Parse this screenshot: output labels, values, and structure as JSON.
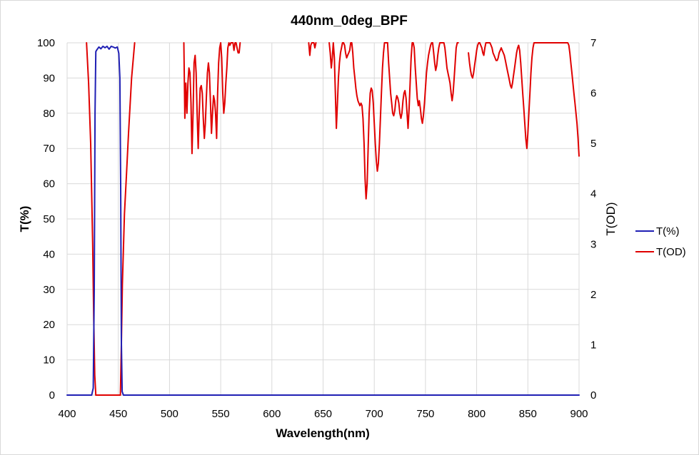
{
  "chart_data": {
    "type": "line",
    "title": "440nm_0deg_BPF",
    "xlabel": "Wavelength(nm)",
    "ylabel": "T(%)",
    "y2label": "T(OD)",
    "xlim": [
      400,
      900
    ],
    "ylim": [
      0,
      100
    ],
    "y2lim": [
      0,
      7
    ],
    "xticks": [
      "400",
      "450",
      "500",
      "550",
      "600",
      "650",
      "700",
      "750",
      "800",
      "850",
      "900"
    ],
    "yticks": [
      "0",
      "10",
      "20",
      "30",
      "40",
      "50",
      "60",
      "70",
      "80",
      "90",
      "100"
    ],
    "y2ticks": [
      "0",
      "1",
      "2",
      "3",
      "4",
      "5",
      "6",
      "7"
    ],
    "grid": "vertical-and-horizontal",
    "legend_position": "right",
    "series": [
      {
        "name": "T(%)",
        "axis": "left",
        "color": "#1f1fb4",
        "x": [
          400,
          424,
          425.5,
          426.5,
          427.3,
          428,
          429,
          431,
          433,
          435,
          437,
          439,
          441,
          443,
          445,
          447,
          449,
          450.5,
          451.5,
          452.3,
          453,
          453.8,
          455,
          900
        ],
        "y": [
          0,
          0,
          2,
          30,
          80,
          97.5,
          98,
          98.8,
          98.3,
          99,
          98.6,
          99,
          98.2,
          99,
          98.8,
          98.5,
          98.8,
          97,
          90,
          60,
          15,
          1,
          0,
          0
        ]
      },
      {
        "name": "T(OD)",
        "axis": "right",
        "color": "#e00000",
        "segments": [
          {
            "x": [
              419,
              421,
              423,
              425,
              426,
              427,
              428
            ],
            "y": [
              7,
              6.2,
              5,
              3,
              1.5,
              0.4,
              0
            ]
          },
          {
            "x": [
              428,
              452
            ],
            "y": [
              0,
              0
            ]
          },
          {
            "x": [
              452,
              453,
              454,
              456,
              458,
              460,
              463,
              466
            ],
            "y": [
              0,
              1,
              2.2,
              3.6,
              4.4,
              5.2,
              6.3,
              7
            ]
          },
          {
            "x": [
              514,
              515,
              516,
              517,
              518,
              519,
              520,
              521,
              522,
              523,
              524,
              525,
              526,
              527,
              528,
              529,
              530,
              531,
              532,
              533,
              534,
              535,
              536,
              537,
              538,
              539,
              540,
              541,
              542,
              543,
              544,
              545,
              546,
              547,
              548,
              549,
              550,
              551,
              552,
              553,
              554,
              555,
              556,
              557,
              558,
              559,
              560,
              561,
              562,
              563,
              564,
              565,
              566,
              567,
              568,
              569
            ],
            "y": [
              7,
              5.5,
              6.2,
              5.6,
              6.2,
              6.5,
              6.4,
              5.8,
              4.8,
              5.6,
              6.6,
              6.75,
              6.4,
              5.6,
              4.9,
              5.6,
              6.1,
              6.15,
              6.0,
              5.5,
              5.1,
              5.4,
              5.9,
              6.4,
              6.6,
              6.4,
              5.8,
              5.2,
              5.6,
              5.95,
              5.85,
              5.6,
              5.1,
              6.0,
              6.6,
              6.9,
              7,
              6.7,
              6.0,
              5.6,
              5.8,
              6.2,
              6.5,
              6.9,
              7,
              6.95,
              7,
              7,
              7,
              6.85,
              7,
              7,
              6.9,
              6.8,
              6.8,
              7
            ]
          },
          {
            "x": [
              636,
              637,
              638,
              639,
              640,
              641,
              642,
              643
            ],
            "y": [
              7,
              6.75,
              6.95,
              7,
              7,
              7,
              6.9,
              7
            ]
          },
          {
            "x": [
              656,
              657,
              658,
              659,
              660,
              661,
              662,
              663,
              664,
              665,
              666,
              667,
              668,
              669,
              670,
              671,
              672,
              673,
              674,
              675,
              676,
              677,
              678,
              679,
              680,
              681,
              682,
              683,
              684,
              685,
              686,
              687,
              688,
              689,
              690,
              691,
              692,
              693,
              694,
              695,
              696,
              697,
              698,
              699,
              700,
              701,
              702,
              703,
              704,
              705,
              706,
              707,
              708,
              709,
              710,
              711,
              712,
              713
            ],
            "y": [
              7,
              6.8,
              6.5,
              6.7,
              7,
              6.7,
              6.0,
              5.3,
              5.8,
              6.3,
              6.6,
              6.8,
              6.9,
              7,
              7,
              6.95,
              6.8,
              6.7,
              6.75,
              6.8,
              6.85,
              7,
              7,
              6.8,
              6.5,
              6.3,
              6.1,
              5.95,
              5.85,
              5.8,
              5.75,
              5.8,
              5.75,
              5.5,
              5.0,
              4.3,
              3.9,
              4.2,
              4.9,
              5.6,
              6.0,
              6.1,
              6.05,
              5.8,
              5.4,
              5.0,
              4.65,
              4.45,
              4.6,
              5.0,
              5.5,
              6.0,
              6.5,
              6.8,
              7,
              7,
              7,
              7
            ]
          },
          {
            "x": [
              713,
              714,
              715,
              716,
              717,
              718,
              719,
              720,
              721,
              722,
              723,
              724,
              725,
              726,
              727,
              728,
              729,
              730,
              731,
              732,
              733,
              734,
              735,
              736,
              737,
              738,
              739,
              740,
              741,
              742,
              743,
              744,
              745,
              746,
              747,
              748,
              749,
              750,
              751,
              752,
              753,
              754,
              755,
              756,
              757,
              758,
              759,
              760,
              761,
              762,
              763,
              764,
              765,
              766,
              767,
              768,
              769,
              770,
              771,
              772,
              773,
              774,
              775,
              776,
              777,
              778,
              779,
              780,
              781,
              782
            ],
            "y": [
              7,
              6.6,
              6.3,
              6.0,
              5.8,
              5.6,
              5.55,
              5.65,
              5.85,
              5.95,
              5.9,
              5.8,
              5.6,
              5.5,
              5.6,
              5.85,
              6.0,
              6.05,
              5.9,
              5.6,
              5.3,
              5.7,
              6.2,
              6.7,
              7,
              7,
              6.9,
              6.5,
              6.2,
              5.9,
              5.75,
              5.85,
              5.7,
              5.5,
              5.4,
              5.55,
              5.8,
              6.1,
              6.4,
              6.6,
              6.75,
              6.85,
              6.95,
              7,
              7,
              6.8,
              6.6,
              6.45,
              6.55,
              6.75,
              6.9,
              7,
              7,
              7,
              7,
              7,
              6.9,
              6.7,
              6.5,
              6.4,
              6.3,
              6.2,
              6.0,
              5.85,
              6.0,
              6.3,
              6.6,
              6.9,
              7,
              7
            ]
          },
          {
            "x": [
              792,
              793,
              794,
              795,
              796,
              797,
              798,
              799,
              800,
              801,
              802,
              803,
              804,
              805,
              806,
              807,
              808,
              809,
              810,
              811,
              812,
              813,
              814,
              815,
              816,
              817,
              818,
              819,
              820,
              821,
              822,
              823,
              824,
              825,
              826,
              827,
              828,
              829,
              830,
              831,
              832,
              833,
              834,
              835,
              836,
              837,
              838,
              839,
              840,
              841,
              842,
              843,
              844,
              845,
              846,
              847,
              848,
              849,
              850,
              851,
              852,
              853,
              854,
              855,
              856,
              857,
              858,
              859,
              860,
              861,
              862,
              863,
              864,
              865,
              866,
              867,
              868,
              869,
              870,
              871,
              872,
              873,
              874,
              875,
              876,
              877,
              878,
              879,
              880,
              881,
              882,
              883,
              884,
              885,
              886,
              887,
              888,
              889,
              890,
              891,
              892,
              893,
              894,
              895,
              896,
              897,
              898,
              899,
              900
            ],
            "y": [
              6.8,
              6.6,
              6.45,
              6.35,
              6.3,
              6.4,
              6.55,
              6.7,
              6.85,
              6.95,
              7,
              7,
              6.95,
              6.9,
              6.8,
              6.75,
              6.9,
              7,
              7,
              7,
              7,
              7,
              6.95,
              6.9,
              6.8,
              6.75,
              6.7,
              6.65,
              6.65,
              6.7,
              6.8,
              6.85,
              6.9,
              6.85,
              6.8,
              6.75,
              6.65,
              6.55,
              6.45,
              6.35,
              6.25,
              6.15,
              6.1,
              6.2,
              6.35,
              6.5,
              6.65,
              6.8,
              6.9,
              6.95,
              6.85,
              6.6,
              6.3,
              6.0,
              5.7,
              5.4,
              5.1,
              4.9,
              5.2,
              5.6,
              6.0,
              6.4,
              6.7,
              6.9,
              7,
              7,
              7,
              7,
              7,
              7,
              7,
              7,
              7,
              7,
              7,
              7,
              7,
              7,
              7,
              7,
              7,
              7,
              7,
              7,
              7,
              7,
              7,
              7,
              7,
              7,
              7,
              7,
              7,
              7,
              7,
              7,
              7,
              7,
              6.95,
              6.8,
              6.6,
              6.4,
              6.2,
              6.0,
              5.8,
              5.6,
              5.4,
              5.1,
              4.75
            ]
          }
        ]
      }
    ]
  }
}
